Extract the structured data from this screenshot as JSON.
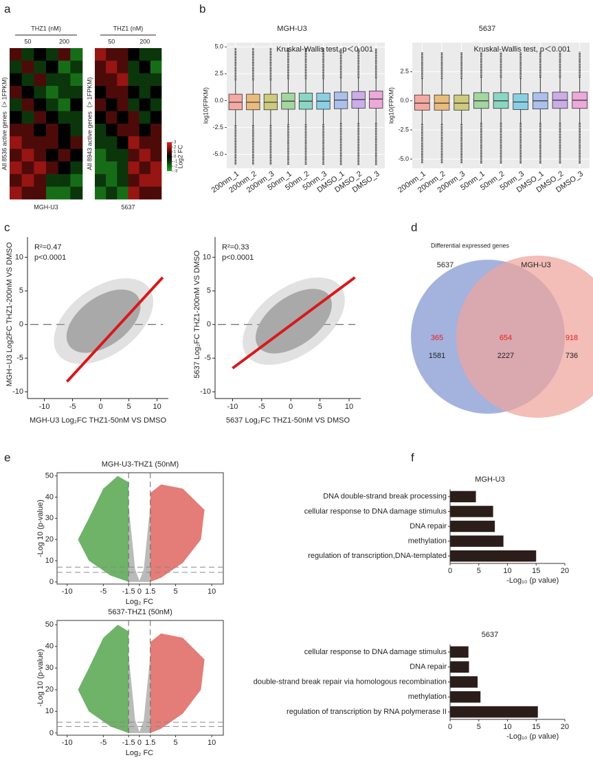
{
  "chart_data": [
    {
      "type": "heatmap",
      "panel": "a",
      "group_title": "THZ1 (nM)",
      "groups": [
        "50",
        "200"
      ],
      "ylabel": "All 8536 active genes（> 1FPKM)",
      "xlabel": "MGH-U3",
      "zlim": [
        -3,
        3
      ],
      "colors": [
        "#22a322",
        "#000000",
        "#e3201c"
      ],
      "matrix": [
        [
          1,
          -1,
          0,
          -1,
          1,
          -2
        ],
        [
          -1,
          1,
          -1,
          0,
          -2,
          -1
        ],
        [
          0,
          -1,
          1,
          -1,
          -1,
          -2
        ],
        [
          1,
          0,
          -1,
          -2,
          -1,
          -1
        ],
        [
          -1,
          1,
          0,
          -1,
          -2,
          0
        ],
        [
          0,
          -1,
          1,
          0,
          -1,
          -1
        ],
        [
          1,
          1,
          0,
          1,
          0,
          -1
        ],
        [
          2,
          1,
          1,
          1,
          0,
          1
        ],
        [
          1,
          2,
          1,
          0,
          1,
          0
        ],
        [
          2,
          1,
          2,
          1,
          0,
          -1
        ],
        [
          1,
          2,
          1,
          -1,
          -1,
          -2
        ],
        [
          2,
          1,
          1,
          -2,
          -2,
          -1
        ]
      ]
    },
    {
      "type": "heatmap",
      "group_title": "THZ1 (nM)",
      "groups": [
        "50",
        "200"
      ],
      "ylabel": "All 8943 active genes（> 1FPKM)",
      "xlabel": "5637",
      "zlim": [
        -3,
        3
      ],
      "colors": [
        "#22a322",
        "#000000",
        "#e3201c"
      ],
      "matrix": [
        [
          2,
          1,
          1,
          0,
          -1,
          -1
        ],
        [
          1,
          2,
          1,
          -1,
          0,
          -2
        ],
        [
          1,
          1,
          2,
          -1,
          -1,
          -1
        ],
        [
          0,
          1,
          1,
          0,
          -1,
          0
        ],
        [
          1,
          0,
          1,
          -1,
          0,
          -1
        ],
        [
          0,
          1,
          0,
          1,
          -1,
          0
        ],
        [
          -1,
          0,
          1,
          1,
          0,
          1
        ],
        [
          -1,
          -1,
          0,
          2,
          1,
          1
        ],
        [
          -2,
          -1,
          -1,
          1,
          2,
          1
        ],
        [
          -2,
          -2,
          -1,
          2,
          1,
          2
        ],
        [
          -1,
          -2,
          -1,
          1,
          2,
          2
        ],
        [
          -2,
          -1,
          -2,
          2,
          1,
          1
        ]
      ],
      "colorbar": {
        "label": "Log2 FC",
        "ticks": [
          3,
          2,
          1,
          0,
          -1,
          -2,
          -3
        ]
      }
    },
    {
      "type": "boxplot",
      "panel": "b",
      "title": "MGH-U3",
      "annotation": "Kruskal-Wallis test, p＜0.001",
      "ylabel": "log10(FPKM)",
      "categories": [
        "200nm_1",
        "200nm_2",
        "200nm_3",
        "50nm_1",
        "50nm_2",
        "50nm_3",
        "DMSO_1",
        "DMSO_2",
        "DMSO_3"
      ],
      "colors": [
        "#f4a9a3",
        "#e9bb7d",
        "#cccb7e",
        "#a3d6a1",
        "#8bd6c2",
        "#8ad0e2",
        "#abc0ea",
        "#cbadE8",
        "#eca9da"
      ],
      "boxes": [
        {
          "min": -6.0,
          "low": -2.3,
          "q1": -0.85,
          "median": -0.15,
          "q3": 0.6,
          "high": 1.9,
          "max": 4.9
        },
        {
          "min": -6.0,
          "low": -2.3,
          "q1": -0.85,
          "median": -0.15,
          "q3": 0.6,
          "high": 1.9,
          "max": 4.9
        },
        {
          "min": -6.0,
          "low": -2.3,
          "q1": -0.85,
          "median": -0.15,
          "q3": 0.6,
          "high": 1.9,
          "max": 4.9
        },
        {
          "min": -6.0,
          "low": -2.2,
          "q1": -0.8,
          "median": -0.05,
          "q3": 0.7,
          "high": 2.0,
          "max": 4.9
        },
        {
          "min": -6.0,
          "low": -2.2,
          "q1": -0.8,
          "median": -0.05,
          "q3": 0.7,
          "high": 2.0,
          "max": 4.9
        },
        {
          "min": -6.0,
          "low": -2.2,
          "q1": -0.8,
          "median": -0.05,
          "q3": 0.7,
          "high": 2.0,
          "max": 4.9
        },
        {
          "min": -6.0,
          "low": -2.1,
          "q1": -0.75,
          "median": 0.05,
          "q3": 0.8,
          "high": 2.1,
          "max": 4.9
        },
        {
          "min": -6.0,
          "low": -2.1,
          "q1": -0.7,
          "median": 0.1,
          "q3": 0.85,
          "high": 2.1,
          "max": 4.9
        },
        {
          "min": -6.0,
          "low": -2.1,
          "q1": -0.7,
          "median": 0.15,
          "q3": 0.9,
          "high": 2.1,
          "max": 4.9
        }
      ],
      "ylim": [
        -6.3,
        5.4
      ],
      "yticks": [
        {
          "value": 5,
          "label": "5.0"
        },
        2.5,
        {
          "value": 0,
          "label": "0.0"
        },
        -2.5,
        {
          "value": -5,
          "label": "-5.0"
        }
      ]
    },
    {
      "type": "boxplot",
      "title": "5637",
      "annotation": "Kruskal-Wallis test, p＜0.001",
      "ylabel": "log10(FPKM)",
      "categories": [
        "200nm_1",
        "200nm_2",
        "200nm_3",
        "50nm_1",
        "50nm_2",
        "50nm_3",
        "DMSO_1",
        "DMSO_2",
        "DMSO_3"
      ],
      "colors": [
        "#f4a9a3",
        "#e9bb7d",
        "#cccb7e",
        "#a3d6a1",
        "#8bd6c2",
        "#8ad0e2",
        "#abc0ea",
        "#cbade8",
        "#eca9da"
      ],
      "boxes": [
        {
          "min": -5.4,
          "low": -2.0,
          "q1": -0.8,
          "median": -0.2,
          "q3": 0.5,
          "high": 1.9,
          "max": 4.2
        },
        {
          "min": -5.4,
          "low": -2.0,
          "q1": -0.8,
          "median": -0.2,
          "q3": 0.5,
          "high": 1.9,
          "max": 4.2
        },
        {
          "min": -5.4,
          "low": -2.0,
          "q1": -0.8,
          "median": -0.2,
          "q3": 0.5,
          "high": 1.9,
          "max": 4.2
        },
        {
          "min": -5.4,
          "low": -1.9,
          "q1": -0.65,
          "median": 0.0,
          "q3": 0.7,
          "high": 2.0,
          "max": 4.2
        },
        {
          "min": -5.4,
          "low": -1.9,
          "q1": -0.65,
          "median": 0.0,
          "q3": 0.7,
          "high": 2.0,
          "max": 4.2
        },
        {
          "min": -5.4,
          "low": -1.9,
          "q1": -0.75,
          "median": -0.1,
          "q3": 0.6,
          "high": 1.9,
          "max": 4.2
        },
        {
          "min": -5.4,
          "low": -1.9,
          "q1": -0.7,
          "median": 0.0,
          "q3": 0.7,
          "high": 2.0,
          "max": 4.2
        },
        {
          "min": -5.4,
          "low": -1.9,
          "q1": -0.65,
          "median": 0.05,
          "q3": 0.75,
          "high": 2.0,
          "max": 4.2
        },
        {
          "min": -5.4,
          "low": -1.9,
          "q1": -0.65,
          "median": 0.05,
          "q3": 0.75,
          "high": 2.0,
          "max": 4.2
        }
      ],
      "ylim": [
        -5.8,
        5.0
      ],
      "yticks": [
        2.5,
        {
          "value": 0,
          "label": "0.0"
        },
        -2.5,
        {
          "value": -5,
          "label": "-5.0"
        }
      ]
    },
    {
      "type": "scatter",
      "panel": "c",
      "annotations": [
        "R²=0.47",
        "p<0.0001"
      ],
      "xlabel": "MGH-U3 Log₂FC THZ1-50nM VS DMSO",
      "ylabel": "MGH−U3 Log2FC THZ1-200nM VS DMSO",
      "xlim": [
        -13,
        12
      ],
      "ylim": [
        -11,
        13
      ],
      "xticks": [
        -10,
        -5,
        0,
        5,
        10
      ],
      "yticks": [
        -10,
        -5,
        0,
        5,
        10
      ],
      "hline": 0,
      "color": "#a9a9a9",
      "line_color": "#d7191c"
    },
    {
      "type": "scatter",
      "annotations": [
        "R²=0.33",
        "p<0.0001"
      ],
      "xlabel": "5637 Log₂FC THZ1-50nM VS DMSO",
      "ylabel": "5637 Log₂FC THZ1-200nM VS DMSO",
      "xlim": [
        -13,
        12
      ],
      "ylim": [
        -11,
        13
      ],
      "xticks": [
        -10,
        -5,
        0,
        5,
        10
      ],
      "yticks": [
        -10,
        -5,
        0,
        5,
        10
      ],
      "hline": 0,
      "color": "#a9a9a9",
      "line_color": "#d7191c"
    },
    {
      "type": "venn",
      "panel": "d",
      "title": "Differential expressed genes",
      "sets": [
        "5637",
        "MGH-U3"
      ],
      "regions": [
        {
          "up": 365,
          "down": 1581
        },
        {
          "up": 654,
          "down": 2227
        },
        {
          "up": 918,
          "down": 736
        }
      ]
    },
    {
      "type": "volcano",
      "panel": "e",
      "title": "MGH-U3-THZ1 (50nM)",
      "xlabel": "Log₂ FC",
      "ylabel": "-Log 10 (p-value)",
      "xlim": [
        -11.4,
        11.6
      ],
      "ylim": [
        -1,
        51.5
      ],
      "xticks": [
        -10,
        -5,
        -1.5,
        0,
        1.5,
        5,
        10
      ],
      "yticks": [
        0,
        10,
        20,
        30,
        40,
        50
      ],
      "vlines": [
        -1.5,
        1.5
      ],
      "hlines": [
        4.5,
        7
      ],
      "colors": [
        "#3d9a35",
        "#b3b3b3",
        "#d9453e"
      ]
    },
    {
      "type": "volcano",
      "title": "5637-THZ1 (50nM)",
      "xlabel": "Log₂ FC",
      "ylabel": "-Log 10 (p-value)",
      "xlim": [
        -11.4,
        11.6
      ],
      "ylim": [
        -1,
        52
      ],
      "xticks": [
        -10,
        -5,
        -1.5,
        0,
        1.5,
        5,
        10
      ],
      "yticks": [
        0,
        10,
        20,
        30,
        40,
        50
      ],
      "vlines": [
        -1.5,
        1.5
      ],
      "hlines": [
        3,
        5
      ],
      "colors": [
        "#3d9a35",
        "#b3b3b3",
        "#d9453e"
      ]
    },
    {
      "type": "barh",
      "panel": "f",
      "title": "MGH-U3",
      "xlabel": "-Log₁₀ (p value)",
      "color": "#2b1d1a",
      "categories": [
        "DNA double-strand break processing",
        "cellular response to DNA damage stimulus",
        "DNA repair",
        "methylation",
        "regulation of transcription,DNA-templated"
      ],
      "values": [
        4.5,
        7.5,
        7.8,
        9.3,
        15
      ],
      "xlim": [
        0,
        20
      ],
      "xticks": [
        0,
        5,
        10,
        15,
        20
      ]
    },
    {
      "type": "barh",
      "title": "5637",
      "xlabel": "-Log₁₀ (p value)",
      "color": "#2b1d1a",
      "categories": [
        "cellular response to DNA damage stimulus",
        "DNA repair",
        "double-strand break repair via homologous recombination",
        "methylation",
        "regulation of transcription by RNA polymerase II"
      ],
      "values": [
        3.2,
        3.3,
        4.8,
        5.3,
        15.3
      ],
      "xlim": [
        0,
        20
      ],
      "xticks": [
        0,
        5,
        10,
        15,
        20
      ]
    }
  ]
}
